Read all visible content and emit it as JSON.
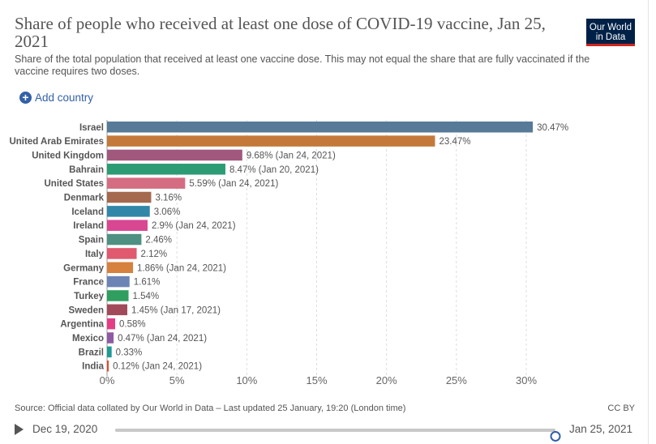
{
  "header": {
    "title": "Share of people who received at least one dose of COVID-19 vaccine, Jan 25, 2021",
    "subtitle": "Share of the total population that received at least one vaccine dose. This may not equal the share that are fully vaccinated if the vaccine requires two doses.",
    "logo_line1": "Our World",
    "logo_line2": "in Data"
  },
  "controls": {
    "add_country_label": "Add country"
  },
  "chart_data": {
    "type": "bar",
    "orientation": "horizontal",
    "title": "Share of people who received at least one dose of COVID-19 vaccine, Jan 25, 2021",
    "xlabel": "",
    "ylabel": "",
    "xlim": [
      0,
      32
    ],
    "grid": true,
    "x_ticks": [
      0,
      5,
      10,
      15,
      20,
      25,
      30
    ],
    "x_tick_labels": [
      "0%",
      "5%",
      "10%",
      "15%",
      "20%",
      "25%",
      "30%"
    ],
    "categories": [
      "Israel",
      "United Arab Emirates",
      "United Kingdom",
      "Bahrain",
      "United States",
      "Denmark",
      "Iceland",
      "Ireland",
      "Spain",
      "Italy",
      "Germany",
      "France",
      "Turkey",
      "Sweden",
      "Argentina",
      "Mexico",
      "Brazil",
      "India"
    ],
    "values": [
      30.47,
      23.47,
      9.68,
      8.47,
      5.59,
      3.16,
      3.06,
      2.9,
      2.46,
      2.12,
      1.86,
      1.61,
      1.54,
      1.45,
      0.58,
      0.47,
      0.33,
      0.12
    ],
    "value_labels": [
      "30.47%",
      "23.47%",
      "9.68% (Jan 24, 2021)",
      "8.47% (Jan 20, 2021)",
      "5.59% (Jan 24, 2021)",
      "3.16%",
      "3.06%",
      "2.9% (Jan 24, 2021)",
      "2.46%",
      "2.12%",
      "1.86% (Jan 24, 2021)",
      "1.61%",
      "1.54%",
      "1.45% (Jan 17, 2021)",
      "0.58%",
      "0.47% (Jan 24, 2021)",
      "0.33%",
      "0.12% (Jan 24, 2021)"
    ],
    "colors": [
      "#577a98",
      "#c4793a",
      "#a1587d",
      "#2b9c74",
      "#d46c82",
      "#a4694f",
      "#3287a8",
      "#d94793",
      "#4e9082",
      "#e0596e",
      "#d6813e",
      "#6b84b5",
      "#2f9e5f",
      "#a24a5a",
      "#e33d86",
      "#8d5aa3",
      "#1e9a97",
      "#e04a2e"
    ]
  },
  "footer": {
    "source": "Source: Official data collated by Our World in Data – Last updated 25 January, 19:20 (London time)",
    "license": "CC BY"
  },
  "timeline": {
    "start_label": "Dec 19, 2020",
    "end_label": "Jan 25, 2021",
    "position": 1.0
  }
}
